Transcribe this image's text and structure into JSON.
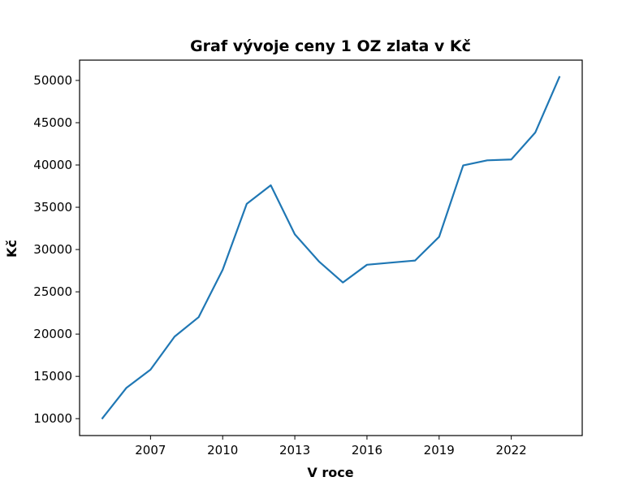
{
  "chart_data": {
    "type": "line",
    "title": "Graf vývoje ceny 1 OZ zlata v Kč",
    "xlabel": "V roce",
    "ylabel": "Kč",
    "x": [
      2005,
      2006,
      2007,
      2008,
      2009,
      2010,
      2011,
      2012,
      2013,
      2014,
      2015,
      2016,
      2017,
      2018,
      2019,
      2020,
      2021,
      2022,
      2023,
      2024
    ],
    "series": [
      {
        "values": [
          10050,
          13650,
          15800,
          19700,
          22000,
          27600,
          35400,
          37600,
          31800,
          28600,
          26100,
          28200,
          28450,
          28700,
          31500,
          39950,
          40550,
          40650,
          43850,
          50400
        ],
        "color": "#1f77b4"
      }
    ],
    "xlim": [
      2004.05,
      2024.95
    ],
    "ylim": [
      8000,
      52400
    ],
    "xticks": [
      2007,
      2010,
      2013,
      2016,
      2019,
      2022
    ],
    "xtick_labels": [
      "2007",
      "2010",
      "2013",
      "2016",
      "2019",
      "2022"
    ],
    "yticks": [
      10000,
      15000,
      20000,
      25000,
      30000,
      35000,
      40000,
      45000,
      50000
    ],
    "ytick_labels": [
      "10000",
      "15000",
      "20000",
      "25000",
      "30000",
      "35000",
      "40000",
      "45000",
      "50000"
    ],
    "grid": false,
    "legend": "none"
  }
}
